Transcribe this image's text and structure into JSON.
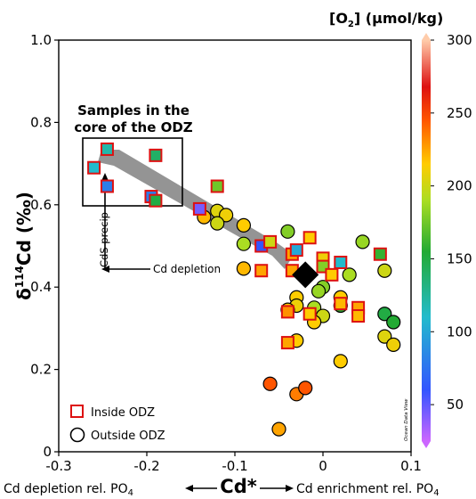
{
  "chart_data": {
    "type": "scatter",
    "xlabel": "Cd*",
    "ylabel": "δ114Cd (‰)",
    "xlim": [
      -0.3,
      0.1
    ],
    "ylim": [
      0,
      1.0
    ],
    "x_ticks": [
      "-0.3",
      "-0.2",
      "-0.1",
      "0",
      "0.1"
    ],
    "y_ticks": [
      "0",
      "0.2",
      "0.4",
      "0.6",
      "0.8",
      "1.0"
    ],
    "x_side_labels": {
      "left": "Cd depletion rel. PO4",
      "right": "Cd enrichment rel. PO4"
    },
    "colorbar": {
      "title": "[O2] (µmol/kg)",
      "ticks": [
        "50",
        "100",
        "150",
        "200",
        "250",
        "300"
      ],
      "range": [
        25,
        300
      ],
      "stops": [
        {
          "value": 25,
          "color": "#cc66ff"
        },
        {
          "value": 60,
          "color": "#3355ff"
        },
        {
          "value": 110,
          "color": "#22bbcc"
        },
        {
          "value": 155,
          "color": "#22aa33"
        },
        {
          "value": 190,
          "color": "#aadd22"
        },
        {
          "value": 215,
          "color": "#ffcc00"
        },
        {
          "value": 245,
          "color": "#ff5500"
        },
        {
          "value": 268,
          "color": "#dd1111"
        },
        {
          "value": 300,
          "color": "#ffccaa"
        }
      ]
    },
    "annotations": {
      "box_title_line1": "Samples in the",
      "box_title_line2": "core of the ODZ",
      "cds_precip": "CdS precip",
      "cd_depletion": "Cd depletion",
      "watermark": "Ocean Data View"
    },
    "legend": {
      "position": "bottom-left",
      "items": [
        "Inside ODZ",
        "Outside ODZ"
      ]
    },
    "highlight_point": {
      "x": -0.02,
      "y": 0.43,
      "marker": "diamond",
      "color": "#000000"
    },
    "series": [
      {
        "name": "Inside ODZ",
        "marker": "square",
        "points": [
          {
            "x": -0.26,
            "y": 0.69,
            "o2": 110
          },
          {
            "x": -0.245,
            "y": 0.735,
            "o2": 120
          },
          {
            "x": -0.245,
            "y": 0.645,
            "o2": 80
          },
          {
            "x": -0.19,
            "y": 0.72,
            "o2": 140
          },
          {
            "x": -0.195,
            "y": 0.62,
            "o2": 80
          },
          {
            "x": -0.19,
            "y": 0.61,
            "o2": 150
          },
          {
            "x": -0.14,
            "y": 0.59,
            "o2": 45
          },
          {
            "x": -0.12,
            "y": 0.645,
            "o2": 175
          },
          {
            "x": -0.07,
            "y": 0.5,
            "o2": 60
          },
          {
            "x": -0.06,
            "y": 0.51,
            "o2": 200
          },
          {
            "x": -0.07,
            "y": 0.44,
            "o2": 225
          },
          {
            "x": -0.035,
            "y": 0.48,
            "o2": 225
          },
          {
            "x": -0.03,
            "y": 0.49,
            "o2": 100
          },
          {
            "x": -0.015,
            "y": 0.52,
            "o2": 215
          },
          {
            "x": -0.035,
            "y": 0.44,
            "o2": 225
          },
          {
            "x": 0.0,
            "y": 0.47,
            "o2": 210
          },
          {
            "x": 0.0,
            "y": 0.45,
            "o2": 180
          },
          {
            "x": 0.02,
            "y": 0.46,
            "o2": 110
          },
          {
            "x": 0.01,
            "y": 0.43,
            "o2": 215
          },
          {
            "x": 0.065,
            "y": 0.48,
            "o2": 160
          },
          {
            "x": -0.04,
            "y": 0.34,
            "o2": 230
          },
          {
            "x": -0.015,
            "y": 0.335,
            "o2": 215
          },
          {
            "x": 0.02,
            "y": 0.36,
            "o2": 220
          },
          {
            "x": 0.04,
            "y": 0.35,
            "o2": 225
          },
          {
            "x": 0.04,
            "y": 0.33,
            "o2": 220
          },
          {
            "x": -0.04,
            "y": 0.265,
            "o2": 225
          }
        ]
      },
      {
        "name": "Outside ODZ",
        "marker": "circle",
        "points": [
          {
            "x": -0.135,
            "y": 0.57,
            "o2": 220
          },
          {
            "x": -0.12,
            "y": 0.585,
            "o2": 205
          },
          {
            "x": -0.11,
            "y": 0.575,
            "o2": 210
          },
          {
            "x": -0.12,
            "y": 0.555,
            "o2": 200
          },
          {
            "x": -0.09,
            "y": 0.55,
            "o2": 215
          },
          {
            "x": -0.09,
            "y": 0.505,
            "o2": 190
          },
          {
            "x": -0.09,
            "y": 0.445,
            "o2": 220
          },
          {
            "x": -0.04,
            "y": 0.535,
            "o2": 180
          },
          {
            "x": 0.03,
            "y": 0.43,
            "o2": 190
          },
          {
            "x": 0.045,
            "y": 0.51,
            "o2": 185
          },
          {
            "x": 0.07,
            "y": 0.44,
            "o2": 200
          },
          {
            "x": 0.0,
            "y": 0.4,
            "o2": 180
          },
          {
            "x": -0.005,
            "y": 0.39,
            "o2": 185
          },
          {
            "x": -0.03,
            "y": 0.375,
            "o2": 215
          },
          {
            "x": -0.03,
            "y": 0.355,
            "o2": 210
          },
          {
            "x": -0.04,
            "y": 0.345,
            "o2": 215
          },
          {
            "x": -0.01,
            "y": 0.35,
            "o2": 190
          },
          {
            "x": 0.0,
            "y": 0.33,
            "o2": 200
          },
          {
            "x": -0.01,
            "y": 0.315,
            "o2": 215
          },
          {
            "x": 0.02,
            "y": 0.375,
            "o2": 215
          },
          {
            "x": 0.02,
            "y": 0.355,
            "o2": 155
          },
          {
            "x": 0.07,
            "y": 0.335,
            "o2": 150
          },
          {
            "x": 0.08,
            "y": 0.315,
            "o2": 155
          },
          {
            "x": -0.03,
            "y": 0.27,
            "o2": 215
          },
          {
            "x": 0.07,
            "y": 0.28,
            "o2": 205
          },
          {
            "x": 0.08,
            "y": 0.26,
            "o2": 210
          },
          {
            "x": 0.02,
            "y": 0.22,
            "o2": 215
          },
          {
            "x": -0.06,
            "y": 0.165,
            "o2": 245
          },
          {
            "x": -0.03,
            "y": 0.14,
            "o2": 235
          },
          {
            "x": -0.02,
            "y": 0.155,
            "o2": 245
          },
          {
            "x": -0.05,
            "y": 0.055,
            "o2": 225
          }
        ]
      }
    ]
  }
}
